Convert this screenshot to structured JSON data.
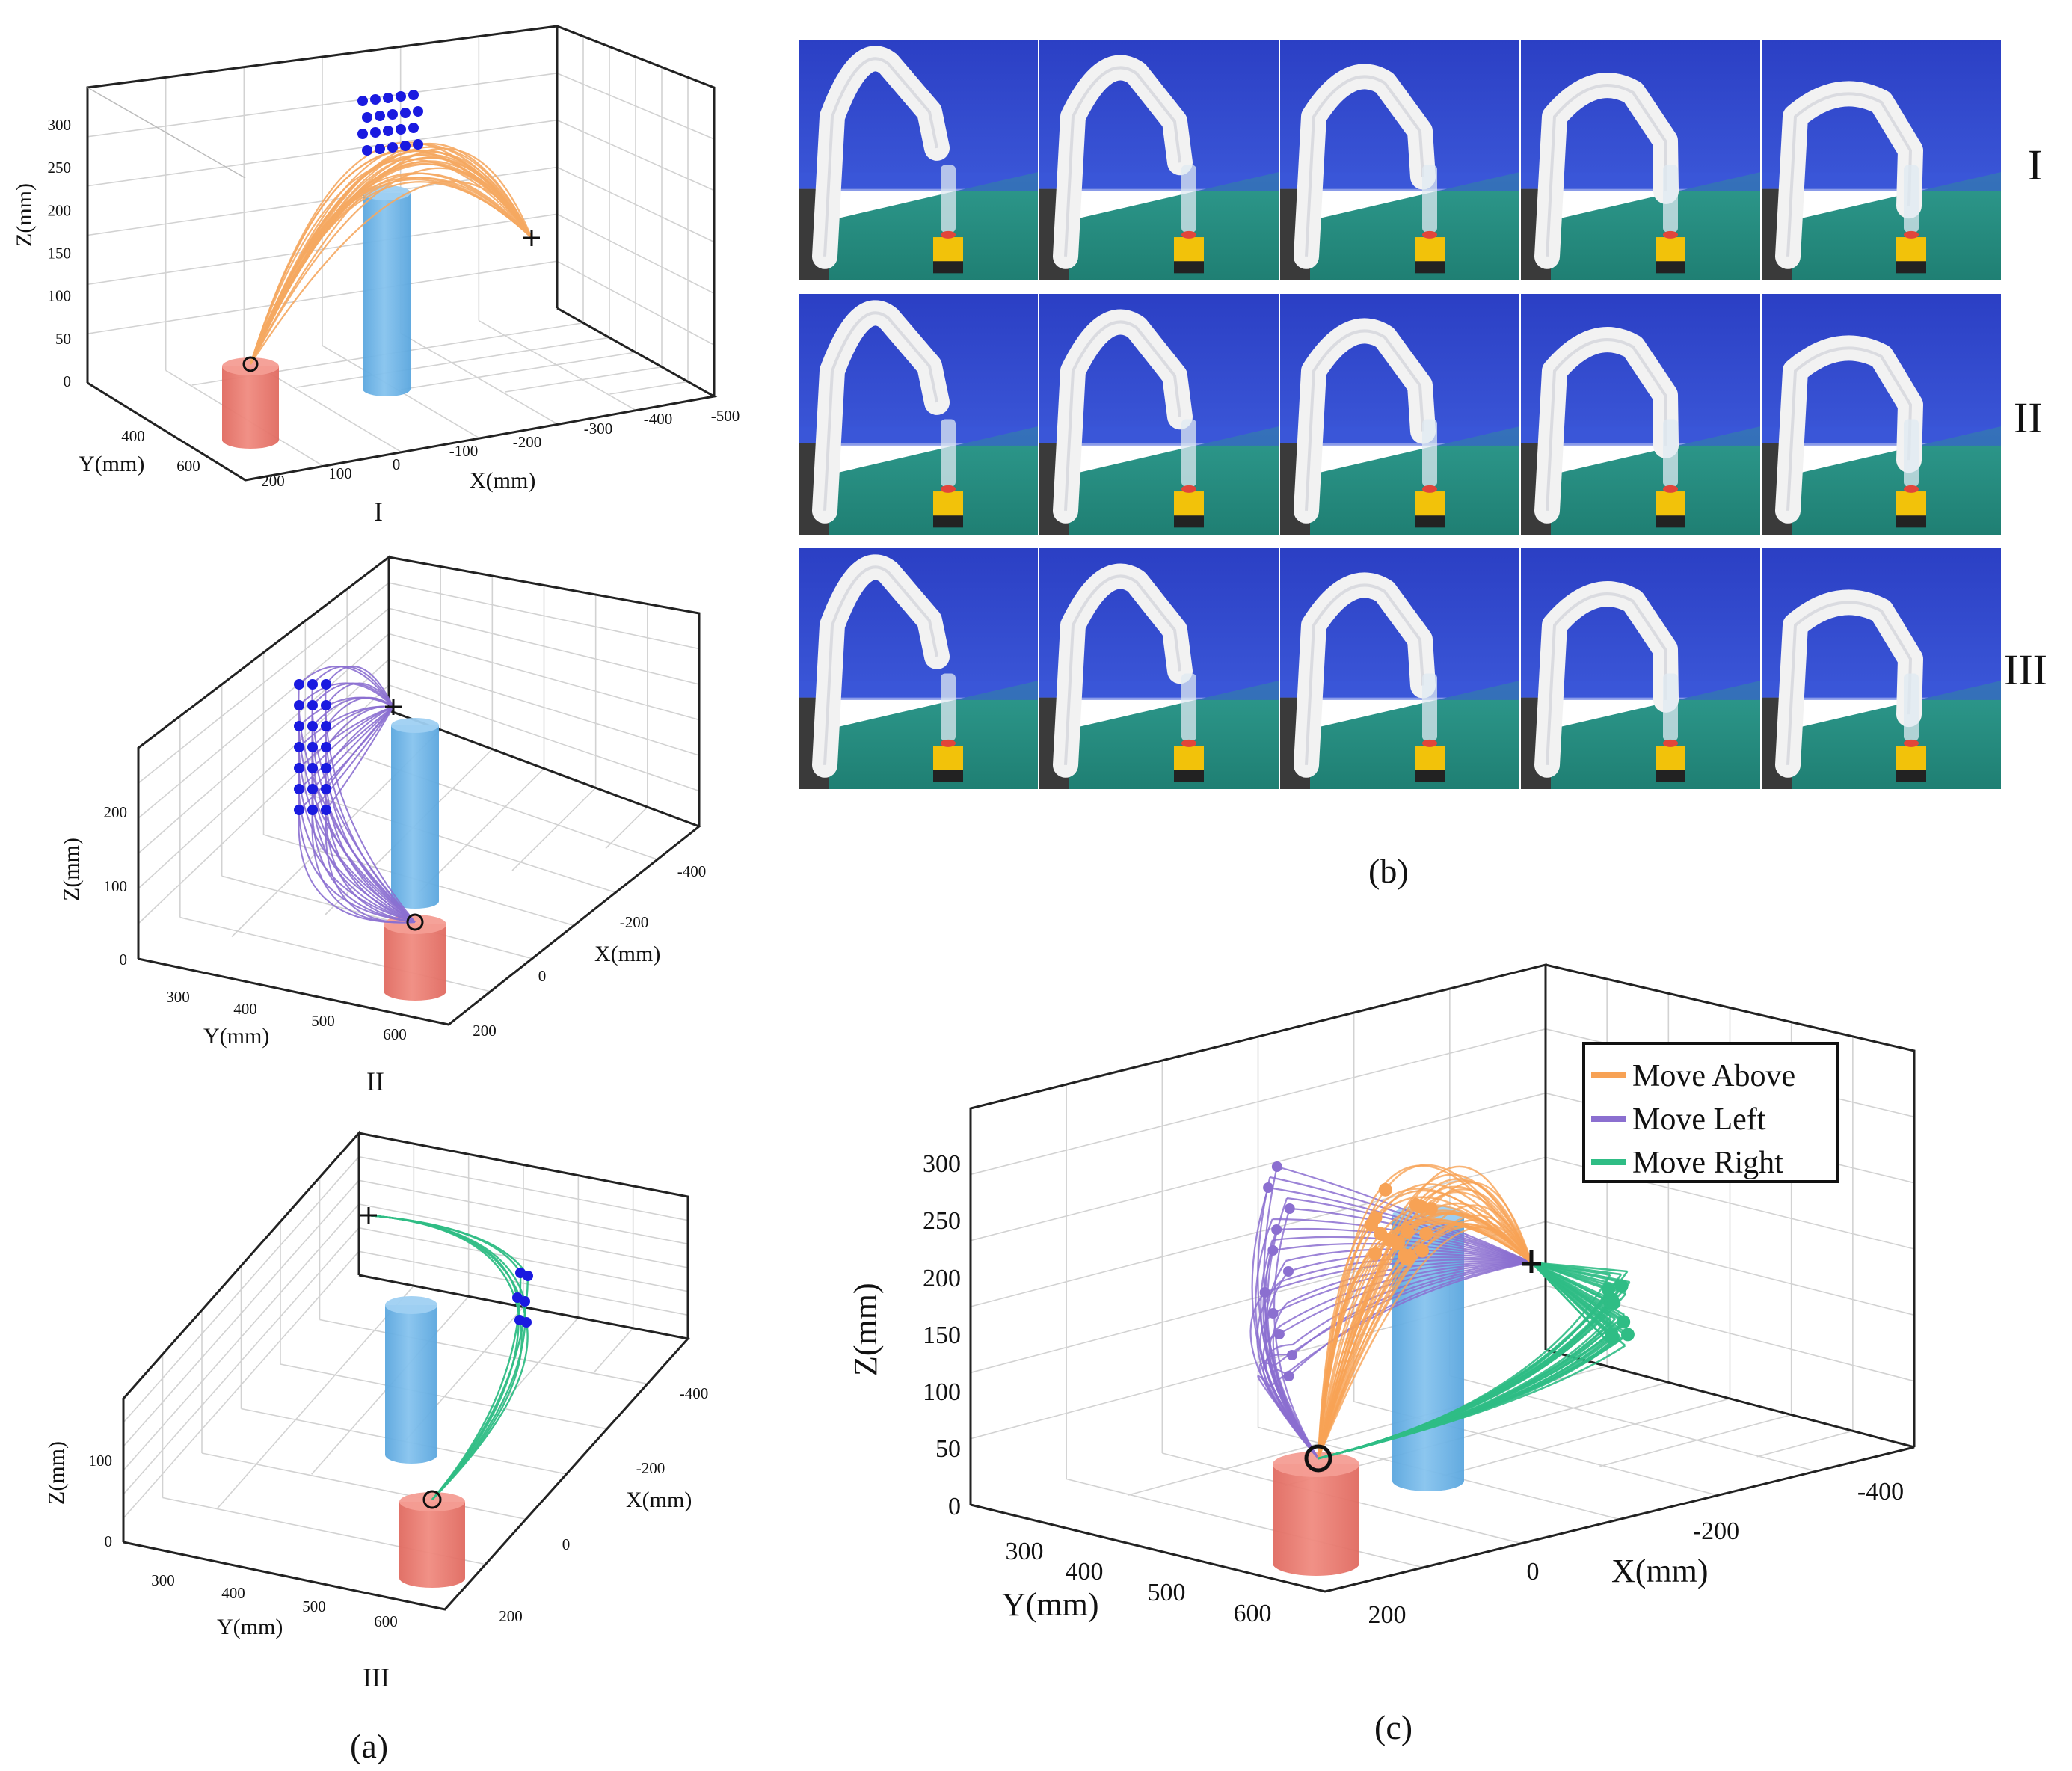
{
  "chart_data": [
    {
      "id": "I",
      "type": "scatter",
      "subplot_label": "I",
      "xlabel": "X(mm)",
      "ylabel": "Y(mm)",
      "zlabel": "Z(mm)",
      "x_ticks": [
        "200",
        "100",
        "0",
        "-100",
        "-200",
        "-300",
        "-400",
        "-500"
      ],
      "y_ticks": [
        "400",
        "600"
      ],
      "z_ticks": [
        "0",
        "50",
        "100",
        "150",
        "200",
        "250",
        "300"
      ],
      "xlim": [
        200,
        -500
      ],
      "ylim": [
        200,
        650
      ],
      "zlim": [
        0,
        330
      ],
      "start_marker": "circle",
      "goal_marker": "plus",
      "trajectory_color": "#f5a962",
      "point_color": "#1a1ae0",
      "obstacles": [
        {
          "color": "#e8756b",
          "role": "start"
        },
        {
          "color": "#69b2e6",
          "role": "obstacle"
        }
      ]
    },
    {
      "id": "II",
      "type": "scatter",
      "subplot_label": "II",
      "xlabel": "X(mm)",
      "ylabel": "Y(mm)",
      "zlabel": "Z(mm)",
      "x_ticks": [
        "-400",
        "-200",
        "0",
        "200"
      ],
      "y_ticks": [
        "300",
        "400",
        "500",
        "600"
      ],
      "z_ticks": [
        "0",
        "100",
        "200"
      ],
      "xlim": [
        200,
        -450
      ],
      "ylim": [
        250,
        650
      ],
      "zlim": [
        0,
        270
      ],
      "trajectory_color": "#8b6fd0",
      "point_color": "#1a1ae0"
    },
    {
      "id": "III",
      "type": "scatter",
      "subplot_label": "III",
      "xlabel": "X(mm)",
      "ylabel": "Y(mm)",
      "zlabel": "Z(mm)",
      "x_ticks": [
        "-400",
        "-200",
        "0",
        "200"
      ],
      "y_ticks": [
        "300",
        "400",
        "500",
        "600"
      ],
      "z_ticks": [
        "0",
        "100"
      ],
      "xlim": [
        200,
        -450
      ],
      "ylim": [
        250,
        650
      ],
      "zlim": [
        0,
        180
      ],
      "trajectory_color": "#2fbd85",
      "point_color": "#1a1ae0"
    },
    {
      "id": "c",
      "type": "line",
      "xlabel": "X(mm)",
      "ylabel": "Y(mm)",
      "zlabel": "Z(mm)",
      "x_ticks": [
        "-400",
        "-200",
        "0",
        "200"
      ],
      "y_ticks": [
        "300",
        "400",
        "500",
        "600"
      ],
      "z_ticks": [
        "0",
        "50",
        "100",
        "150",
        "200",
        "250",
        "300"
      ],
      "xlim": [
        200,
        -450
      ],
      "ylim": [
        250,
        650
      ],
      "zlim": [
        0,
        340
      ],
      "legend_position": "top-right",
      "series": [
        {
          "name": "Move Above",
          "color": "#f7a255"
        },
        {
          "name": "Move Left",
          "color": "#8b6fd0"
        },
        {
          "name": "Move Right",
          "color": "#2fbd85"
        }
      ]
    }
  ],
  "panels": {
    "a": "(a)",
    "b": "(b)",
    "c": "(c)"
  },
  "photo_rows": [
    "I",
    "II",
    "III"
  ]
}
